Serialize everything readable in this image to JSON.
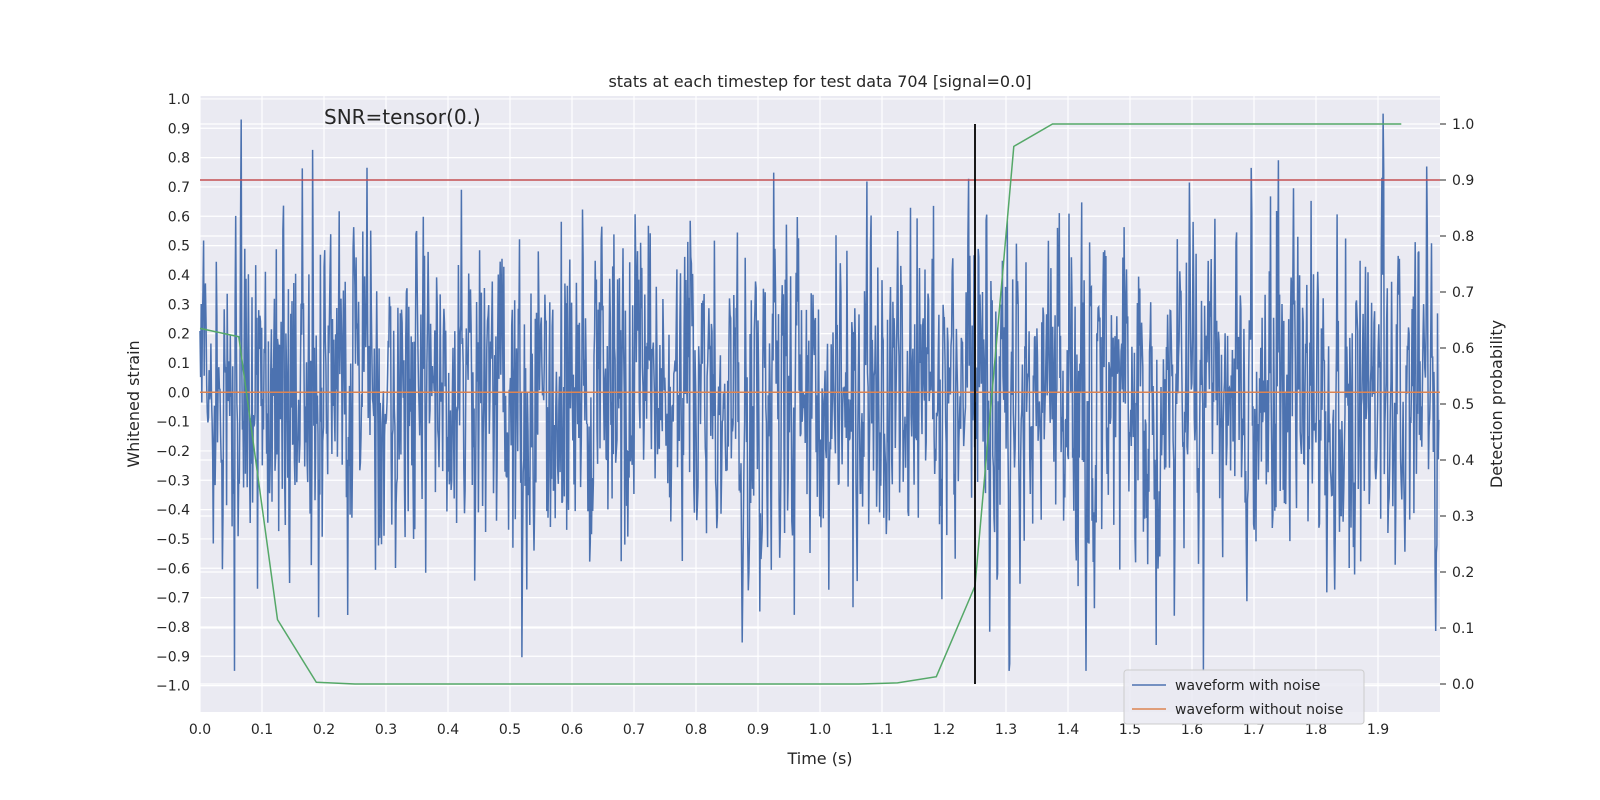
{
  "chart_data": {
    "type": "line",
    "title": "stats at each timestep for test data 704 [signal=0.0]",
    "xlabel": "Time (s)",
    "ylabel": "Whitened strain",
    "y2label": "Detection probability",
    "xlim": [
      0.0,
      2.0
    ],
    "ylim": [
      -1.09,
      1.01
    ],
    "y2lim": [
      -0.05,
      1.05
    ],
    "xticks": [
      "0.0",
      "0.1",
      "0.2",
      "0.3",
      "0.4",
      "0.5",
      "0.6",
      "0.7",
      "0.8",
      "0.9",
      "1.0",
      "1.1",
      "1.2",
      "1.3",
      "1.4",
      "1.5",
      "1.6",
      "1.7",
      "1.8",
      "1.9"
    ],
    "yticks": [
      "1.0",
      "0.9",
      "0.8",
      "0.7",
      "0.6",
      "0.5",
      "0.4",
      "0.3",
      "0.2",
      "0.1",
      "0.0",
      "-0.1",
      "-0.2",
      "-0.3",
      "-0.4",
      "-0.5",
      "-0.6",
      "-0.7",
      "-0.8",
      "-0.9",
      "-1.0"
    ],
    "y2ticks": [
      "0.0",
      "0.1",
      "0.2",
      "0.3",
      "0.4",
      "0.5",
      "0.6",
      "0.7",
      "0.8",
      "0.9",
      "1.0"
    ],
    "annotation": "SNR=tensor(0.)",
    "threshold": 0.9,
    "marker_time": 1.25,
    "grid": true,
    "legend_position": "lower-right",
    "series": [
      {
        "name": "waveform with noise",
        "color": "#4c72b0",
        "axis": "left",
        "kind": "noise",
        "seed": 704,
        "amplitude": 0.27,
        "peak_abs": 0.95,
        "n_points": 2048,
        "x_range": [
          0.0,
          1.998
        ]
      },
      {
        "name": "waveform without noise",
        "color": "#dd8452",
        "axis": "left",
        "x": [
          0.0,
          2.0
        ],
        "y": [
          0.0,
          0.0
        ]
      },
      {
        "name": "detection probability",
        "color": "#55a868",
        "axis": "right",
        "legend": false,
        "x": [
          0.0,
          0.0625,
          0.125,
          0.1875,
          0.25,
          0.3125,
          0.375,
          0.4375,
          0.5,
          0.5625,
          0.625,
          0.6875,
          0.75,
          0.8125,
          0.875,
          0.9375,
          1.0,
          1.0625,
          1.125,
          1.1875,
          1.25,
          1.3125,
          1.375,
          1.4375,
          1.5,
          1.5625,
          1.625,
          1.6875,
          1.75,
          1.8125,
          1.875,
          1.9375
        ],
        "y": [
          0.635,
          0.62,
          0.115,
          0.003,
          0.0,
          0.0,
          0.0,
          0.0,
          0.0,
          0.0,
          0.0,
          0.0,
          0.0,
          0.0,
          0.0,
          0.0,
          0.0,
          0.0,
          0.002,
          0.013,
          0.175,
          0.96,
          1.0,
          1.0,
          1.0,
          1.0,
          1.0,
          1.0,
          1.0,
          1.0,
          1.0,
          1.0
        ]
      },
      {
        "name": "detection threshold",
        "color": "#c44e52",
        "axis": "right",
        "legend": false,
        "x": [
          0.0,
          2.0
        ],
        "y": [
          0.9,
          0.9
        ]
      }
    ]
  }
}
